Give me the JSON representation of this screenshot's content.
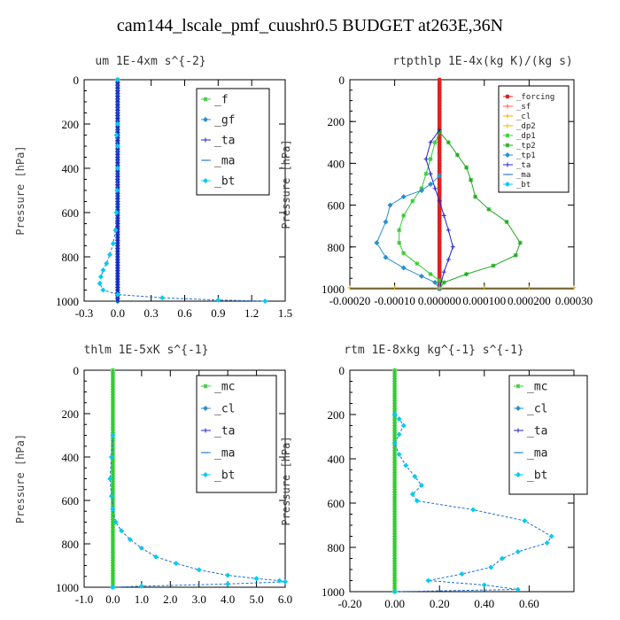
{
  "title": "cam144_lscale_pmf_cuushr0.5  BUDGET at263E,36N",
  "colors": {
    "f": "#33cc33",
    "gf": "#2a8fd0",
    "ta": "#2222cc",
    "ma": "#2277cc",
    "bt": "#00ccee",
    "forcing": "#dd2222",
    "sf": "#ff5555",
    "cl": "#f0b000",
    "dp2": "#e0c000",
    "dp1": "#33cc33",
    "tp2": "#22aa22",
    "tp1": "#2a8fd0",
    "mc": "#33cc33",
    "blue_dashed": "#1a6fd6"
  },
  "chart_data": [
    {
      "type": "line",
      "title": "um  1E-4xm s^{-2}",
      "xlabel": "",
      "ylabel": "Pressure [hPa]",
      "xlim": [
        -0.3,
        1.5
      ],
      "ylim": [
        1000,
        0
      ],
      "xticks": [
        "-0.3",
        "0.0",
        "0.3",
        "0.6",
        "0.9",
        "1.2",
        "1.5"
      ],
      "xtick_values": [
        -0.3,
        0.0,
        0.3,
        0.6,
        0.9,
        1.2,
        1.5
      ],
      "yticks": [
        "0",
        "200",
        "400",
        "600",
        "800",
        "1000"
      ],
      "ytick_values": [
        0,
        200,
        400,
        600,
        800,
        1000
      ],
      "legend": [
        "_f",
        "_gf",
        "_ta",
        "_ma",
        "_bt"
      ],
      "legend_keys": [
        "f",
        "gf",
        "ta",
        "ma",
        "bt"
      ],
      "series": [
        {
          "name": "_f",
          "key": "f",
          "x": [
            0.0,
            0.0
          ],
          "y": [
            0,
            1000
          ]
        },
        {
          "name": "_gf",
          "key": "gf",
          "x": [
            0.0,
            0.0
          ],
          "y": [
            0,
            1000
          ]
        },
        {
          "name": "_ta",
          "key": "ta",
          "x": [
            0.0,
            0.0
          ],
          "y": [
            0,
            1000
          ]
        },
        {
          "name": "_bt",
          "key": "blue_dashed",
          "x": [
            0.0,
            0.0,
            -0.01,
            0.0,
            0.0,
            -0.005,
            -0.01,
            -0.02,
            -0.04,
            -0.07,
            -0.1,
            -0.13,
            -0.15,
            -0.16,
            -0.13,
            0.0,
            0.4,
            0.9,
            1.32
          ],
          "y": [
            0,
            200,
            250,
            300,
            400,
            500,
            600,
            680,
            740,
            790,
            830,
            860,
            890,
            920,
            950,
            970,
            985,
            995,
            1000
          ]
        }
      ]
    },
    {
      "type": "line",
      "title": "rtpthlp  1E-4x(kg K)/(kg s)",
      "xlabel": "",
      "ylabel": "Pressure [hPa]",
      "xlim": [
        -0.0002,
        0.0003
      ],
      "ylim": [
        1000,
        0
      ],
      "xticks": [
        "-0.00020",
        "-0.00010",
        "0.000000",
        "0.000100",
        "0.000200",
        "0.00030"
      ],
      "xtick_values": [
        -0.0002,
        -0.0001,
        0.0,
        0.0001,
        0.0002,
        0.0003
      ],
      "yticks": [
        "0",
        "200",
        "400",
        "600",
        "800",
        "1000"
      ],
      "ytick_values": [
        0,
        200,
        400,
        600,
        800,
        1000
      ],
      "legend": [
        "_forcing",
        "_sf",
        "_cl",
        "_dp2",
        "_dp1",
        "_tp2",
        "_tp1",
        "_ta",
        "_ma",
        "_bt"
      ],
      "legend_keys": [
        "forcing",
        "sf",
        "cl",
        "dp2",
        "dp1",
        "tp2",
        "tp1",
        "ta",
        "ma",
        "bt"
      ],
      "series": [
        {
          "name": "_forcing",
          "key": "forcing",
          "x": [
            0.0,
            0.0
          ],
          "y": [
            0,
            1000
          ]
        },
        {
          "name": "_dp1",
          "key": "dp1",
          "x": [
            0.0,
            -1e-05,
            -2e-05,
            -3e-05,
            -4e-05,
            -6e-05,
            -8e-05,
            -9e-05,
            -9e-05,
            -8e-05,
            -5e-05,
            -2e-05,
            0.0,
            0.0
          ],
          "y": [
            250,
            300,
            380,
            450,
            520,
            580,
            650,
            720,
            780,
            830,
            880,
            930,
            960,
            1000
          ]
        },
        {
          "name": "_tp2",
          "key": "tp2",
          "x": [
            0.0,
            2e-05,
            4e-05,
            6e-05,
            7e-05,
            8e-05,
            0.00011,
            0.00015,
            0.00018,
            0.00017,
            0.00012,
            6e-05,
            1e-05,
            0.0
          ],
          "y": [
            250,
            300,
            360,
            420,
            480,
            560,
            620,
            680,
            780,
            840,
            890,
            930,
            970,
            1000
          ]
        },
        {
          "name": "_ta",
          "key": "ta",
          "x": [
            0.0,
            -2e-05,
            -3e-05,
            -2e-05,
            -1e-05,
            0.0,
            1e-05,
            2e-05,
            3e-05,
            2e-05,
            1e-05,
            0.0
          ],
          "y": [
            240,
            300,
            380,
            450,
            520,
            580,
            650,
            720,
            800,
            860,
            920,
            1000
          ]
        },
        {
          "name": "_tp1",
          "key": "tp1",
          "x": [
            0.0,
            -2e-05,
            -4e-05,
            -8e-05,
            -0.00011,
            -0.00012,
            -0.00014,
            -0.00012,
            -8e-05,
            -4e-05,
            -1e-05,
            0.0
          ],
          "y": [
            460,
            500,
            530,
            560,
            600,
            680,
            780,
            850,
            900,
            940,
            970,
            1000
          ]
        },
        {
          "name": "_cl",
          "key": "cl",
          "x": [
            -0.0002,
            -0.0001,
            0.0,
            0.0001,
            0.0002,
            0.0003
          ],
          "y": [
            995,
            995,
            995,
            995,
            995,
            995
          ]
        }
      ]
    },
    {
      "type": "line",
      "title": "thlm  1E-5xK s^{-1}",
      "xlabel": "",
      "ylabel": "Pressure [hPa]",
      "xlim": [
        -1.0,
        6.0
      ],
      "ylim": [
        1000,
        0
      ],
      "xticks": [
        "-1.0",
        "0.0",
        "1.0",
        "2.0",
        "3.0",
        "4.0",
        "5.0",
        "6.0"
      ],
      "xtick_values": [
        -1.0,
        0.0,
        1.0,
        2.0,
        3.0,
        4.0,
        5.0,
        6.0
      ],
      "yticks": [
        "0",
        "200",
        "400",
        "600",
        "800",
        "1000"
      ],
      "ytick_values": [
        0,
        200,
        400,
        600,
        800,
        1000
      ],
      "legend": [
        "_mc",
        "_cl",
        "_ta",
        "_ma",
        "_bt"
      ],
      "legend_keys": [
        "mc",
        "gf",
        "ta",
        "ma",
        "bt"
      ],
      "series": [
        {
          "name": "_mc",
          "key": "mc",
          "x": [
            0.0,
            0.0
          ],
          "y": [
            0,
            1000
          ]
        },
        {
          "name": "_bt",
          "key": "blue_dashed",
          "x": [
            0.0,
            -0.05,
            -0.1,
            -0.05,
            0.0,
            0.1,
            0.3,
            0.6,
            1.0,
            1.5,
            2.2,
            3.0,
            4.0,
            5.0,
            5.8,
            6.0,
            4.0,
            1.0,
            0.0
          ],
          "y": [
            300,
            400,
            500,
            580,
            640,
            700,
            740,
            780,
            820,
            860,
            890,
            920,
            945,
            960,
            970,
            975,
            985,
            995,
            1000
          ]
        }
      ]
    },
    {
      "type": "line",
      "title": "rtm  1E-8xkg kg^{-1} s^{-1}",
      "xlabel": "",
      "ylabel": "Pressure [hPa]",
      "xlim": [
        -0.2,
        0.8
      ],
      "ylim": [
        1000,
        0
      ],
      "xticks": [
        "-0.20",
        "0.00",
        "0.20",
        "0.40",
        "0.60"
      ],
      "xtick_values": [
        -0.2,
        0.0,
        0.2,
        0.4,
        0.6
      ],
      "yticks": [
        "0",
        "200",
        "400",
        "600",
        "800",
        "1000"
      ],
      "ytick_values": [
        0,
        200,
        400,
        600,
        800,
        1000
      ],
      "legend": [
        "_mc",
        "_cl",
        "_ta",
        "_ma",
        "_bt"
      ],
      "legend_keys": [
        "mc",
        "gf",
        "ta",
        "ma",
        "bt"
      ],
      "series": [
        {
          "name": "_mc",
          "key": "mc",
          "x": [
            0.0,
            0.0
          ],
          "y": [
            0,
            1000
          ]
        },
        {
          "name": "_bt",
          "key": "blue_dashed",
          "x": [
            0.0,
            0.02,
            0.04,
            0.02,
            0.0,
            0.02,
            0.05,
            0.09,
            0.12,
            0.08,
            0.1,
            0.35,
            0.58,
            0.7,
            0.68,
            0.55,
            0.48,
            0.43,
            0.3,
            0.15,
            0.4,
            0.55,
            0.0
          ],
          "y": [
            200,
            220,
            250,
            290,
            330,
            380,
            430,
            480,
            520,
            560,
            590,
            630,
            680,
            750,
            780,
            820,
            850,
            890,
            920,
            950,
            970,
            990,
            1000
          ]
        }
      ]
    }
  ]
}
